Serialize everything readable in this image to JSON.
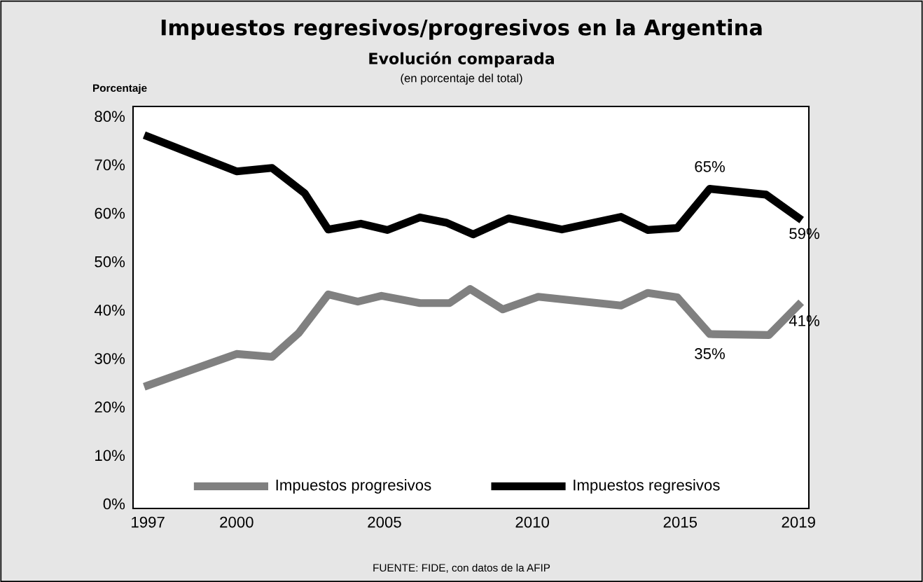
{
  "chart_data": {
    "type": "line",
    "title": "Impuestos regresivos/progresivos en la Argentina",
    "subtitle": "Evolución comparada",
    "ylabel": "Porcentaje",
    "series": [
      {
        "name": "Impuestos progresivos",
        "color": "#808080",
        "x": [
          1997,
          2000,
          2001.2,
          2002.1,
          2003.1,
          2004.1,
          2004.9,
          2006.2,
          2007.2,
          2007.9,
          2009.0,
          2010.2,
          2013.0,
          2013.9,
          2014.9,
          2016.0,
          2018.0,
          2019
        ],
        "values": [
          24.4,
          30.9,
          30.3,
          35.2,
          43.2,
          41.7,
          42.9,
          41.4,
          41.4,
          44.3,
          40.1,
          42.7,
          40.9,
          43.5,
          42.6,
          35,
          34.8,
          41
        ],
        "value_labels": [
          null,
          null,
          null,
          null,
          null,
          null,
          null,
          null,
          null,
          null,
          null,
          null,
          null,
          null,
          null,
          "35%",
          null,
          "41%"
        ]
      },
      {
        "name": "Impuestos regresivos",
        "color": "#000000",
        "x": [
          1997,
          2000,
          2001.2,
          2002.3,
          2003.1,
          2004.2,
          2005.1,
          2006.2,
          2007.1,
          2008.0,
          2009.2,
          2011.0,
          2013.0,
          2013.9,
          2014.9,
          2016.0,
          2017.9,
          2019
        ],
        "values": [
          75.8,
          68.6,
          69.3,
          64.1,
          56.6,
          57.8,
          56.5,
          59.1,
          58.0,
          55.6,
          58.9,
          56.6,
          59.2,
          56.5,
          56.9,
          65,
          63.8,
          59
        ],
        "value_labels": [
          null,
          null,
          null,
          null,
          null,
          null,
          null,
          null,
          null,
          null,
          null,
          null,
          null,
          null,
          null,
          "65%",
          null,
          "59%"
        ]
      }
    ],
    "xlim": [
      1996.5,
      2019.35
    ],
    "xticks": [
      1997,
      2000,
      2005,
      2010,
      2015,
      2019
    ],
    "ylim": [
      -1,
      82
    ],
    "yticks": [
      {
        "value": 0,
        "label": "0%"
      },
      {
        "value": 10,
        "label": "10%"
      },
      {
        "value": 20,
        "label": "20%"
      },
      {
        "value": 30,
        "label": "30%"
      },
      {
        "value": 40,
        "label": "40%"
      },
      {
        "value": 50,
        "label": "50%"
      },
      {
        "value": 60,
        "label": "60%"
      },
      {
        "value": 70,
        "label": "70%"
      },
      {
        "value": 80,
        "label": "80%"
      }
    ],
    "annotations": [
      "(en porcentaje del total)",
      "FUENTE: FIDE, con datos de la AFIP"
    ],
    "legend": "bottom",
    "grid": false,
    "line_style": "solid",
    "marker": "none"
  }
}
